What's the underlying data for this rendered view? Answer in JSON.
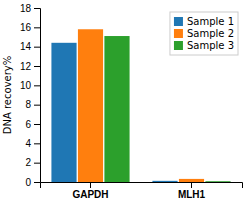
{
  "chart_data": {
    "type": "bar",
    "categories": [
      "GAPDH",
      "MLH1"
    ],
    "series": [
      {
        "name": "Sample 1",
        "values": [
          14.4,
          0.12
        ]
      },
      {
        "name": "Sample 2",
        "values": [
          15.8,
          0.32
        ]
      },
      {
        "name": "Sample 3",
        "values": [
          15.1,
          0.08
        ]
      }
    ],
    "y_label": "DNA recovery%",
    "ylim": [
      0,
      18
    ],
    "yticks": [
      0,
      2,
      4,
      6,
      8,
      10,
      12,
      14,
      16,
      18
    ],
    "legend": "upper right"
  }
}
